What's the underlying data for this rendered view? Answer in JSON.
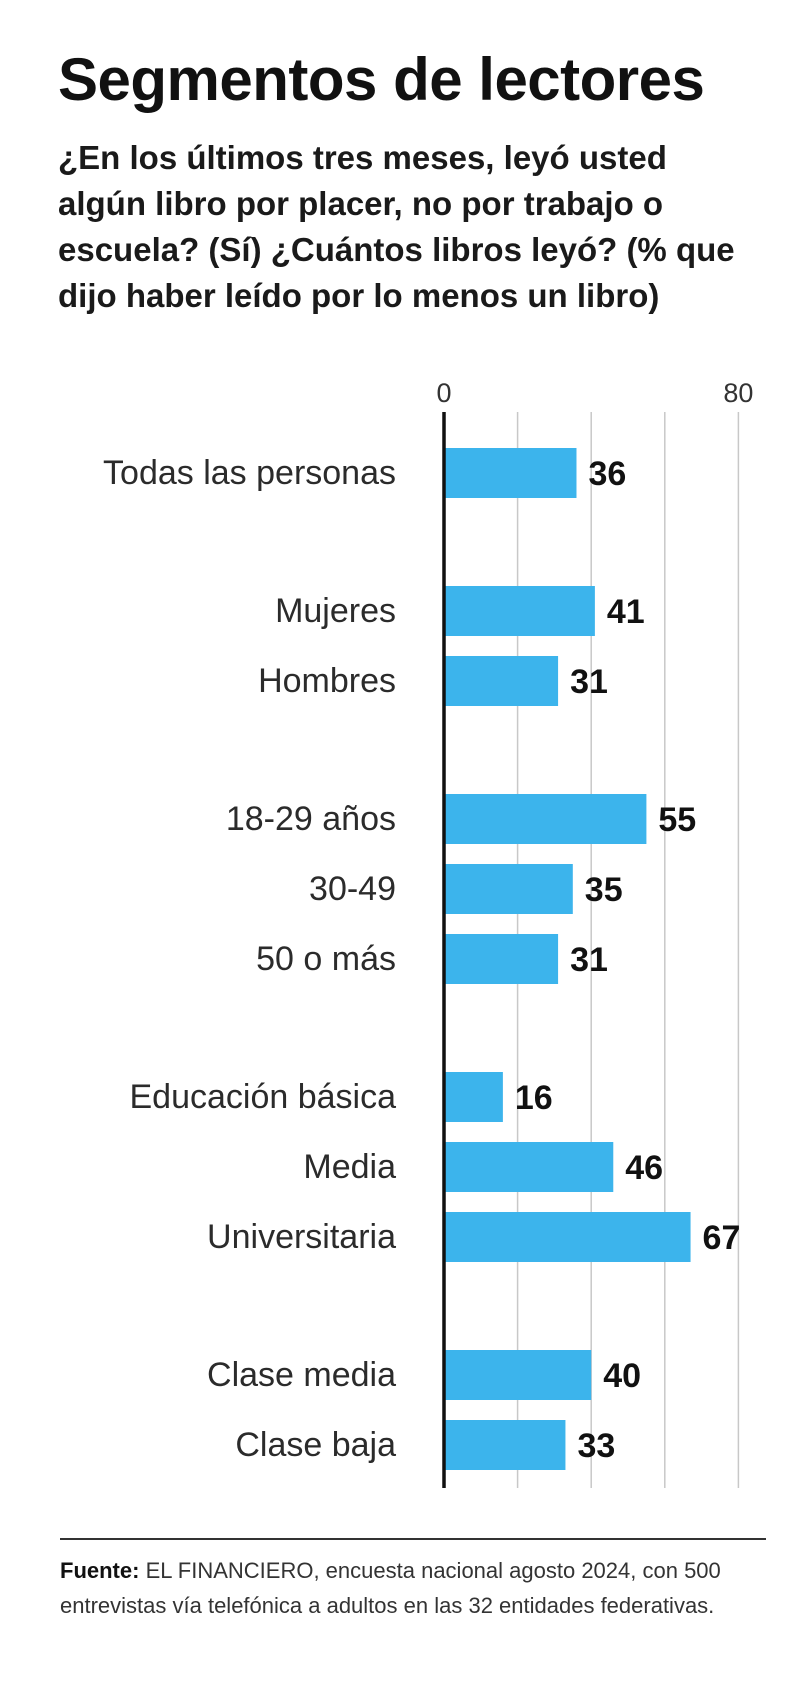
{
  "header": {
    "title": "Segmentos de lectores",
    "subtitle": "¿En los últimos tres meses, leyó usted algún libro por placer, no por trabajo o escuela? (Sí) ¿Cuántos libros leyó? (% que dijo haber leído por lo menos un libro)"
  },
  "chart_data": {
    "type": "bar",
    "orientation": "horizontal",
    "title": "Segmentos de lectores",
    "xlim": [
      0,
      80
    ],
    "xticks": [
      0,
      20,
      40,
      60,
      80
    ],
    "xtick_labels": [
      "0",
      "80"
    ],
    "bar_color": "#3cb4ec",
    "groups": [
      {
        "categories": [
          "Todas las personas"
        ],
        "values": [
          36
        ]
      },
      {
        "categories": [
          "Mujeres",
          "Hombres"
        ],
        "values": [
          41,
          31
        ]
      },
      {
        "categories": [
          "18-29 años",
          "30-49",
          "50 o más"
        ],
        "values": [
          55,
          35,
          31
        ]
      },
      {
        "categories": [
          "Educación básica",
          "Media",
          "Universitaria"
        ],
        "values": [
          16,
          46,
          67
        ]
      },
      {
        "categories": [
          "Clase media",
          "Clase baja"
        ],
        "values": [
          40,
          33
        ]
      }
    ]
  },
  "footer": {
    "source_label": "Fuente:",
    "source_text": "EL FINANCIERO, encuesta nacional agosto 2024, con 500 entrevistas vía telefónica a adultos en las 32 entidades federativas."
  }
}
